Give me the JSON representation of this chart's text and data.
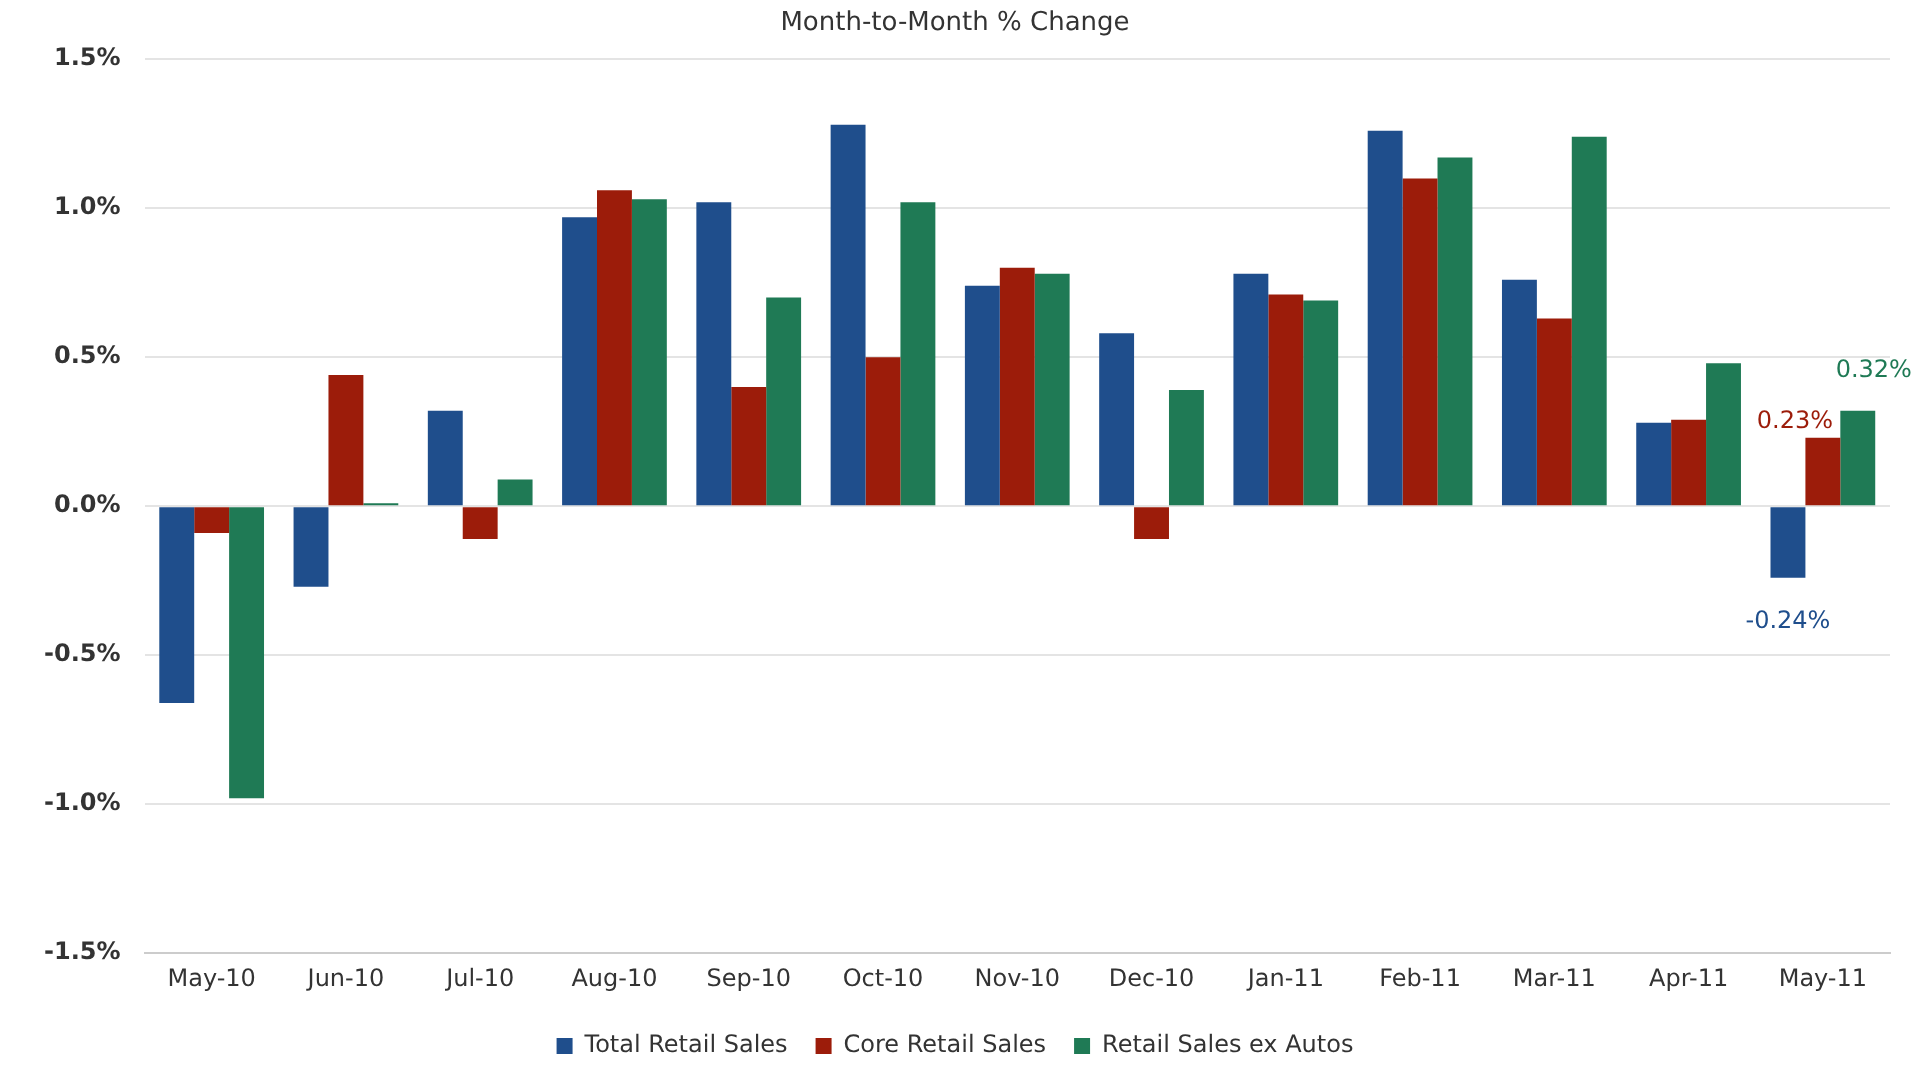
{
  "chart_data": {
    "type": "bar",
    "title": "Month-to-Month % Change",
    "categories": [
      "May-10",
      "Jun-10",
      "Jul-10",
      "Aug-10",
      "Sep-10",
      "Oct-10",
      "Nov-10",
      "Dec-10",
      "Jan-11",
      "Feb-11",
      "Mar-11",
      "Apr-11",
      "May-11"
    ],
    "series": [
      {
        "name": "Total Retail Sales",
        "color": "#1f4e8c",
        "values": [
          -0.66,
          -0.27,
          0.32,
          0.97,
          1.02,
          1.28,
          0.74,
          0.58,
          0.78,
          1.26,
          0.76,
          0.28,
          -0.24
        ],
        "value_labels": [
          null,
          null,
          null,
          null,
          null,
          null,
          null,
          null,
          null,
          null,
          null,
          null,
          "-0.24%"
        ]
      },
      {
        "name": "Core Retail Sales",
        "color": "#9c1c0a",
        "values": [
          -0.09,
          0.44,
          -0.11,
          1.06,
          0.4,
          0.5,
          0.8,
          -0.11,
          0.71,
          1.1,
          0.63,
          0.29,
          0.23
        ],
        "value_labels": [
          null,
          null,
          null,
          null,
          null,
          null,
          null,
          null,
          null,
          null,
          null,
          null,
          "0.23%"
        ]
      },
      {
        "name": "Retail Sales ex Autos",
        "color": "#1f7a55",
        "values": [
          -0.98,
          0.01,
          0.09,
          1.03,
          0.7,
          1.02,
          0.78,
          0.39,
          0.69,
          1.17,
          1.24,
          0.48,
          0.32
        ],
        "value_labels": [
          null,
          null,
          null,
          null,
          null,
          null,
          null,
          null,
          null,
          null,
          null,
          null,
          "0.32%"
        ]
      }
    ],
    "ylim": [
      -1.5,
      1.5
    ],
    "yticks": [
      {
        "value": -1.5,
        "label": "-1.5%"
      },
      {
        "value": -1.0,
        "label": "-1.0%"
      },
      {
        "value": -0.5,
        "label": "-0.5%"
      },
      {
        "value": 0,
        "label": "0.0%"
      },
      {
        "value": 0.5,
        "label": "0.5%"
      },
      {
        "value": 1.0,
        "label": "1.0%"
      },
      {
        "value": 1.5,
        "label": "1.5%"
      }
    ],
    "grid": "y",
    "legend": "bottom"
  }
}
